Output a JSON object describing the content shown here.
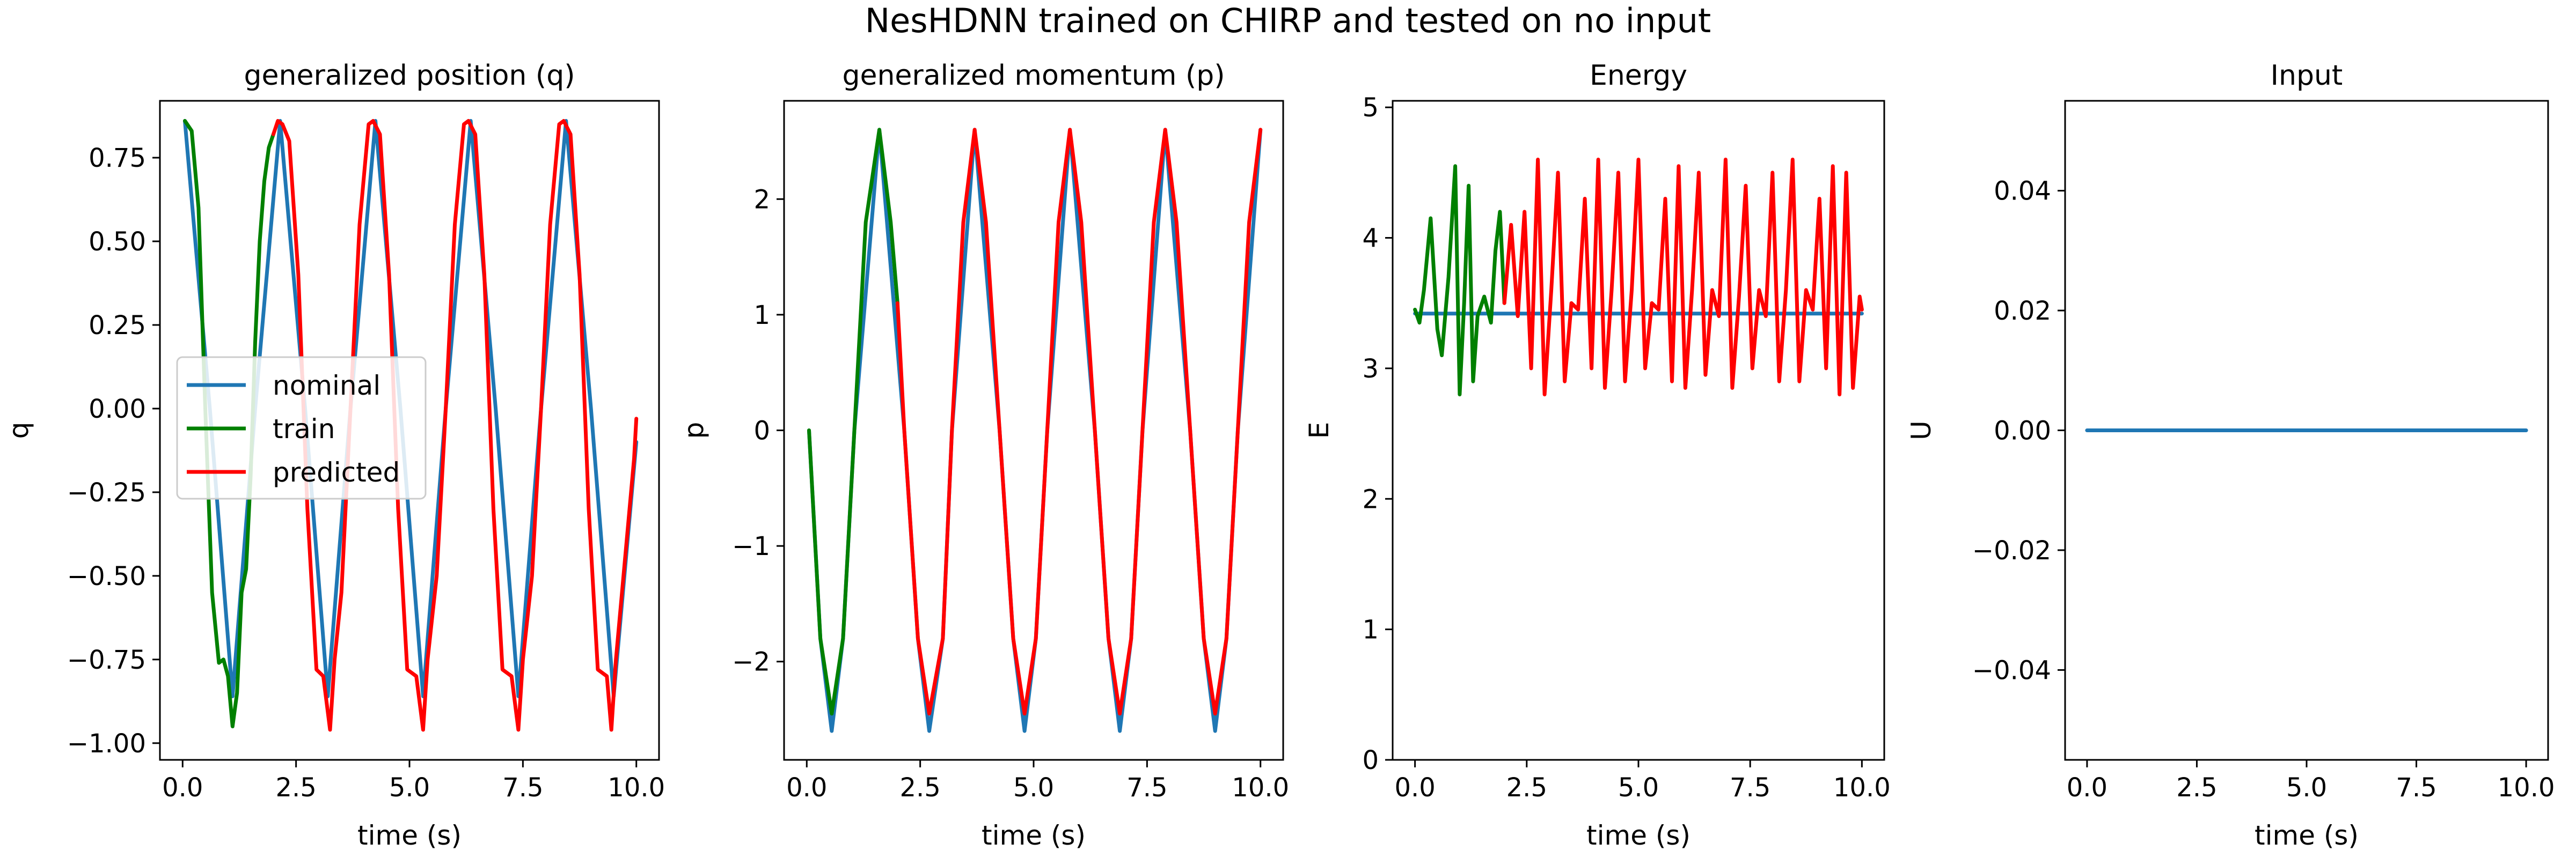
{
  "figure": {
    "suptitle": "NesHDNN trained on CHIRP and tested on no input"
  },
  "colors": {
    "nominal": "#1f77b4",
    "train": "#008000",
    "predicted": "#ff0000"
  },
  "legend": {
    "nominal": "nominal",
    "train": "train",
    "predicted": "predicted"
  },
  "chart_data": [
    {
      "type": "line",
      "title": "generalized position (q)",
      "xlabel": "time (s)",
      "ylabel": "q",
      "xlim": [
        -0.5,
        10.5
      ],
      "ylim": [
        -1.05,
        0.92
      ],
      "xticks": [
        0.0,
        2.5,
        5.0,
        7.5,
        10.0
      ],
      "xtick_labels": [
        "0.0",
        "2.5",
        "5.0",
        "7.5",
        "10.0"
      ],
      "yticks": [
        -1.0,
        -0.75,
        -0.5,
        -0.25,
        0.0,
        0.25,
        0.5,
        0.75
      ],
      "ytick_labels": [
        "−1.00",
        "−0.75",
        "−0.50",
        "−0.25",
        "0.00",
        "0.25",
        "0.50",
        "0.75"
      ],
      "grid": false,
      "legend_position": "center-left",
      "series": [
        {
          "name": "nominal",
          "color": "#1f77b4",
          "x": [
            0.05,
            0.6,
            1.1,
            1.6,
            2.15,
            2.7,
            3.2,
            3.7,
            4.25,
            4.8,
            5.3,
            5.8,
            6.35,
            6.9,
            7.4,
            7.9,
            8.45,
            9.0,
            9.5,
            10.0
          ],
          "y": [
            0.86,
            0.0,
            -0.86,
            0.0,
            0.86,
            0.0,
            -0.86,
            0.0,
            0.86,
            0.0,
            -0.86,
            0.0,
            0.86,
            0.0,
            -0.86,
            0.0,
            0.86,
            0.0,
            -0.86,
            -0.1
          ]
        },
        {
          "name": "train",
          "color": "#008000",
          "x": [
            0.05,
            0.2,
            0.35,
            0.5,
            0.65,
            0.8,
            0.9,
            1.0,
            1.1,
            1.2,
            1.3,
            1.4,
            1.5,
            1.6,
            1.7,
            1.8,
            1.9,
            2.0
          ],
          "y": [
            0.86,
            0.83,
            0.6,
            0.0,
            -0.55,
            -0.76,
            -0.75,
            -0.8,
            -0.95,
            -0.85,
            -0.55,
            -0.48,
            -0.2,
            0.2,
            0.5,
            0.68,
            0.78,
            0.82
          ]
        },
        {
          "name": "predicted",
          "color": "#ff0000",
          "x": [
            2.0,
            2.1,
            2.2,
            2.35,
            2.55,
            2.75,
            2.95,
            3.1,
            3.25,
            3.35,
            3.5,
            3.7,
            3.9,
            4.1,
            4.2,
            4.35,
            4.55,
            4.75,
            4.95,
            5.15,
            5.3,
            5.4,
            5.6,
            5.8,
            6.0,
            6.2,
            6.3,
            6.45,
            6.65,
            6.85,
            7.05,
            7.25,
            7.4,
            7.5,
            7.7,
            7.9,
            8.1,
            8.3,
            8.4,
            8.55,
            8.75,
            8.95,
            9.15,
            9.35,
            9.45,
            9.55,
            9.75,
            9.95,
            10.0
          ],
          "y": [
            0.82,
            0.86,
            0.85,
            0.8,
            0.4,
            -0.3,
            -0.78,
            -0.8,
            -0.96,
            -0.75,
            -0.55,
            0.0,
            0.55,
            0.85,
            0.86,
            0.82,
            0.4,
            -0.3,
            -0.78,
            -0.8,
            -0.96,
            -0.75,
            -0.5,
            0.0,
            0.55,
            0.85,
            0.86,
            0.82,
            0.4,
            -0.3,
            -0.78,
            -0.8,
            -0.96,
            -0.75,
            -0.5,
            0.0,
            0.55,
            0.85,
            0.86,
            0.82,
            0.4,
            -0.3,
            -0.78,
            -0.8,
            -0.96,
            -0.75,
            -0.45,
            -0.15,
            -0.03
          ]
        }
      ]
    },
    {
      "type": "line",
      "title": "generalized momentum (p)",
      "xlabel": "time (s)",
      "ylabel": "p",
      "xlim": [
        -0.5,
        10.5
      ],
      "ylim": [
        -2.85,
        2.85
      ],
      "xticks": [
        0.0,
        2.5,
        5.0,
        7.5,
        10.0
      ],
      "xtick_labels": [
        "0.0",
        "2.5",
        "5.0",
        "7.5",
        "10.0"
      ],
      "yticks": [
        -2,
        -1,
        0,
        1,
        2
      ],
      "ytick_labels": [
        "−2",
        "−1",
        "0",
        "1",
        "2"
      ],
      "grid": false,
      "series": [
        {
          "name": "nominal",
          "color": "#1f77b4",
          "x": [
            0.05,
            0.3,
            0.55,
            0.8,
            1.05,
            1.6,
            2.15,
            2.45,
            2.7,
            3.0,
            3.2,
            3.7,
            4.25,
            4.55,
            4.8,
            5.05,
            5.3,
            5.8,
            6.35,
            6.65,
            6.9,
            7.15,
            7.4,
            7.9,
            8.45,
            8.75,
            9.0,
            9.25,
            9.5,
            10.0
          ],
          "y": [
            0.0,
            -1.8,
            -2.6,
            -1.8,
            0.0,
            2.6,
            0.0,
            -1.8,
            -2.6,
            -1.8,
            0.0,
            2.6,
            0.0,
            -1.8,
            -2.6,
            -1.8,
            0.0,
            2.6,
            0.0,
            -1.8,
            -2.6,
            -1.8,
            0.0,
            2.6,
            0.0,
            -1.8,
            -2.6,
            -1.8,
            0.0,
            2.6
          ]
        },
        {
          "name": "train",
          "color": "#008000",
          "x": [
            0.05,
            0.3,
            0.55,
            0.8,
            1.05,
            1.3,
            1.6,
            1.85,
            2.0
          ],
          "y": [
            0.0,
            -1.8,
            -2.45,
            -1.8,
            0.0,
            1.8,
            2.6,
            1.8,
            1.1
          ]
        },
        {
          "name": "predicted",
          "color": "#ff0000",
          "x": [
            2.0,
            2.15,
            2.45,
            2.7,
            3.0,
            3.2,
            3.45,
            3.7,
            3.95,
            4.25,
            4.55,
            4.8,
            5.05,
            5.3,
            5.55,
            5.8,
            6.05,
            6.35,
            6.65,
            6.9,
            7.15,
            7.4,
            7.65,
            7.9,
            8.15,
            8.45,
            8.75,
            9.0,
            9.25,
            9.5,
            9.75,
            10.0
          ],
          "y": [
            1.1,
            0.0,
            -1.8,
            -2.45,
            -1.8,
            0.0,
            1.8,
            2.6,
            1.8,
            0.0,
            -1.8,
            -2.45,
            -1.8,
            0.0,
            1.8,
            2.6,
            1.8,
            0.0,
            -1.8,
            -2.45,
            -1.8,
            0.0,
            1.8,
            2.6,
            1.8,
            0.0,
            -1.8,
            -2.45,
            -1.8,
            0.0,
            1.8,
            2.6
          ]
        }
      ]
    },
    {
      "type": "line",
      "title": "Energy",
      "xlabel": "time (s)",
      "ylabel": "E",
      "xlim": [
        -0.5,
        10.5
      ],
      "ylim": [
        0,
        5.05
      ],
      "xticks": [
        0.0,
        2.5,
        5.0,
        7.5,
        10.0
      ],
      "xtick_labels": [
        "0.0",
        "2.5",
        "5.0",
        "7.5",
        "10.0"
      ],
      "yticks": [
        0,
        1,
        2,
        3,
        4,
        5
      ],
      "ytick_labels": [
        "0",
        "1",
        "2",
        "3",
        "4",
        "5"
      ],
      "grid": false,
      "series": [
        {
          "name": "nominal",
          "color": "#1f77b4",
          "x": [
            0.0,
            10.0
          ],
          "y": [
            3.42,
            3.42
          ]
        },
        {
          "name": "train",
          "color": "#008000",
          "x": [
            0.0,
            0.1,
            0.2,
            0.35,
            0.5,
            0.6,
            0.75,
            0.9,
            1.0,
            1.1,
            1.2,
            1.3,
            1.4,
            1.55,
            1.7,
            1.8,
            1.9,
            2.0
          ],
          "y": [
            3.45,
            3.35,
            3.6,
            4.15,
            3.3,
            3.1,
            3.7,
            4.55,
            2.8,
            3.5,
            4.4,
            2.9,
            3.4,
            3.55,
            3.35,
            3.9,
            4.2,
            3.5
          ]
        },
        {
          "name": "predicted",
          "color": "#ff0000",
          "x": [
            2.0,
            2.15,
            2.3,
            2.45,
            2.6,
            2.75,
            2.9,
            3.05,
            3.2,
            3.35,
            3.5,
            3.65,
            3.8,
            3.95,
            4.1,
            4.25,
            4.4,
            4.55,
            4.7,
            4.85,
            5.0,
            5.15,
            5.3,
            5.45,
            5.6,
            5.75,
            5.9,
            6.05,
            6.2,
            6.35,
            6.5,
            6.65,
            6.8,
            6.95,
            7.1,
            7.25,
            7.4,
            7.55,
            7.7,
            7.85,
            8.0,
            8.15,
            8.3,
            8.45,
            8.6,
            8.75,
            8.9,
            9.05,
            9.2,
            9.35,
            9.5,
            9.65,
            9.8,
            9.95,
            10.0
          ],
          "y": [
            3.5,
            4.1,
            3.4,
            4.2,
            3.0,
            4.6,
            2.8,
            3.6,
            4.5,
            2.9,
            3.5,
            3.45,
            4.3,
            3.0,
            4.6,
            2.85,
            3.6,
            4.5,
            2.9,
            3.6,
            4.6,
            3.0,
            3.5,
            3.45,
            4.3,
            2.9,
            4.55,
            2.85,
            3.6,
            4.5,
            2.95,
            3.6,
            3.4,
            4.6,
            2.85,
            3.55,
            4.4,
            3.0,
            3.6,
            3.4,
            4.5,
            2.9,
            3.6,
            4.6,
            2.9,
            3.6,
            3.45,
            4.3,
            3.0,
            4.55,
            2.8,
            4.5,
            2.85,
            3.55,
            3.45
          ]
        }
      ]
    },
    {
      "type": "line",
      "title": "Input",
      "xlabel": "time (s)",
      "ylabel": "U",
      "xlim": [
        -0.5,
        10.5
      ],
      "ylim": [
        -0.055,
        0.055
      ],
      "xticks": [
        0.0,
        2.5,
        5.0,
        7.5,
        10.0
      ],
      "xtick_labels": [
        "0.0",
        "2.5",
        "5.0",
        "7.5",
        "10.0"
      ],
      "yticks": [
        -0.04,
        -0.02,
        0.0,
        0.02,
        0.04
      ],
      "ytick_labels": [
        "−0.04",
        "−0.02",
        "0.00",
        "0.02",
        "0.04"
      ],
      "grid": false,
      "series": [
        {
          "color": "#1f77b4",
          "x": [
            0.0,
            10.0
          ],
          "y": [
            0.0,
            0.0
          ]
        }
      ]
    }
  ]
}
